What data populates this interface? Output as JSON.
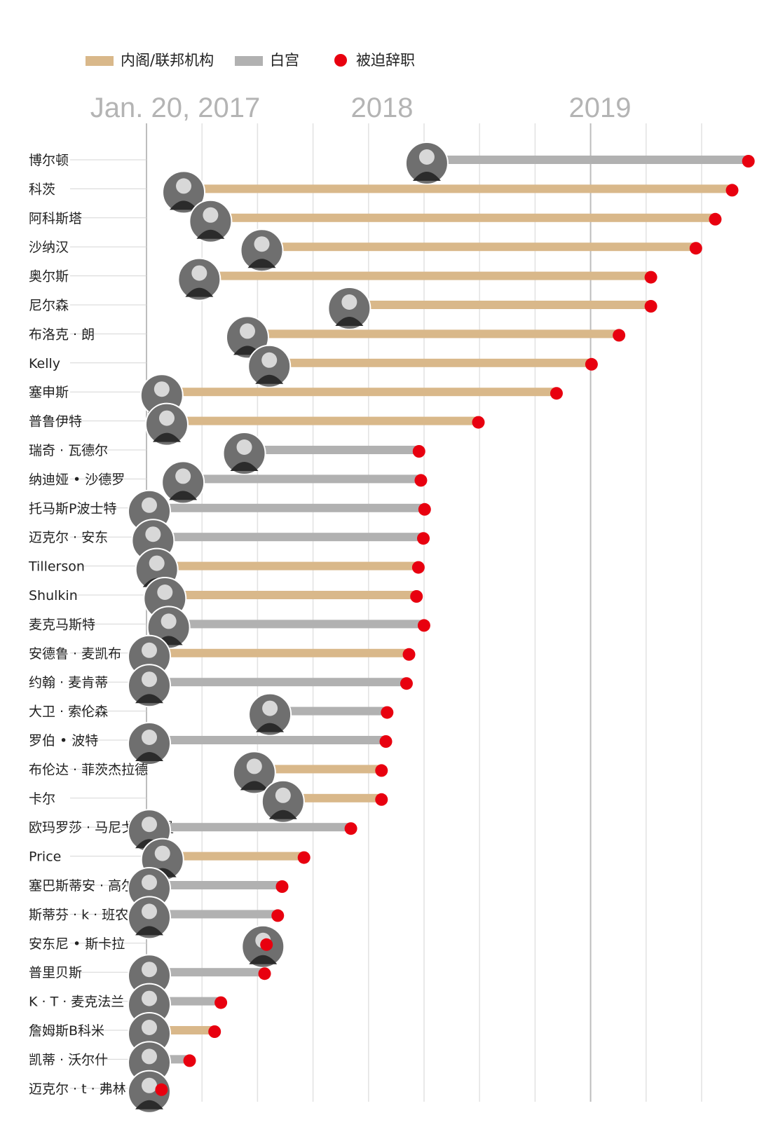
{
  "legend": [
    {
      "label": "内阁/联邦机构",
      "color": "#d9b88a",
      "shape": "bar"
    },
    {
      "label": "白宫",
      "color": "#b1b1b1",
      "shape": "bar"
    },
    {
      "label": "被迫辞职",
      "color": "#e8000f",
      "shape": "dot"
    }
  ],
  "chart_data": {
    "type": "timeline-bar",
    "title": "",
    "x_axis": {
      "type": "date",
      "tick_labels": [
        {
          "label": "Jan. 20, 2017",
          "date": "2017-01-20"
        },
        {
          "label": "2018",
          "date": "2018-01-01"
        },
        {
          "label": "2019",
          "date": "2019-01-01"
        }
      ],
      "range": [
        "2017-01-01",
        "2019-06-01"
      ],
      "grid": true
    },
    "colors": {
      "cabinet": "#d9b88a",
      "white_house": "#b1b1b1",
      "forced": "#e8000f",
      "axis": "#c8c8c8"
    },
    "series_legend": {
      "cabinet": "内阁/联邦机构",
      "white_house": "白宫",
      "forced": "被迫辞职"
    },
    "rows": [
      {
        "name": "博尔顿",
        "category": "white_house",
        "start": "2018-04-09",
        "end": "2019-09-10",
        "forced": true
      },
      {
        "name": "科茨",
        "category": "cabinet",
        "start": "2017-03-16",
        "end": "2019-08-15",
        "forced": true
      },
      {
        "name": "阿科斯塔",
        "category": "cabinet",
        "start": "2017-04-28",
        "end": "2019-07-19",
        "forced": true
      },
      {
        "name": "沙纳汉",
        "category": "cabinet",
        "start": "2017-07-19",
        "end": "2019-06-18",
        "forced": true
      },
      {
        "name": "奥尔斯",
        "category": "cabinet",
        "start": "2017-04-10",
        "end": "2019-04-07",
        "forced": true
      },
      {
        "name": "尼尔森",
        "category": "cabinet",
        "start": "2017-12-06",
        "end": "2019-04-07",
        "forced": true
      },
      {
        "name": "布洛克 · 朗",
        "category": "cabinet",
        "start": "2017-06-26",
        "end": "2019-02-15",
        "forced": true
      },
      {
        "name": "Kelly",
        "category": "cabinet",
        "start": "2017-07-31",
        "end": "2019-01-02",
        "forced": true
      },
      {
        "name": "塞申斯",
        "category": "cabinet",
        "start": "2017-02-09",
        "end": "2018-11-07",
        "forced": true
      },
      {
        "name": "普鲁伊特",
        "category": "cabinet",
        "start": "2017-02-17",
        "end": "2018-07-05",
        "forced": true
      },
      {
        "name": "瑞奇 · 瓦德尔",
        "category": "white_house",
        "start": "2017-06-21",
        "end": "2018-04-01",
        "forced": true
      },
      {
        "name": "纳迪娅 • 沙德罗",
        "category": "white_house",
        "start": "2017-03-15",
        "end": "2018-04-04",
        "forced": true
      },
      {
        "name": "托马斯P波士特",
        "category": "white_house",
        "start": "2017-01-20",
        "end": "2018-04-10",
        "forced": true
      },
      {
        "name": "迈克尔 · 安东",
        "category": "white_house",
        "start": "2017-01-26",
        "end": "2018-04-08",
        "forced": true
      },
      {
        "name": "Tillerson",
        "category": "cabinet",
        "start": "2017-02-01",
        "end": "2018-03-31",
        "forced": true
      },
      {
        "name": "Shulkin",
        "category": "cabinet",
        "start": "2017-02-14",
        "end": "2018-03-28",
        "forced": true
      },
      {
        "name": "麦克马斯特",
        "category": "white_house",
        "start": "2017-02-20",
        "end": "2018-04-09",
        "forced": true
      },
      {
        "name": "安德鲁 · 麦凯布",
        "category": "cabinet",
        "start": "2017-01-20",
        "end": "2018-03-16",
        "forced": true
      },
      {
        "name": "约翰 · 麦肯蒂",
        "category": "white_house",
        "start": "2017-01-20",
        "end": "2018-03-12",
        "forced": true
      },
      {
        "name": "大卫 · 索伦森",
        "category": "white_house",
        "start": "2017-08-01",
        "end": "2018-02-09",
        "forced": true
      },
      {
        "name": "罗伯 • 波特",
        "category": "white_house",
        "start": "2017-01-20",
        "end": "2018-02-07",
        "forced": true
      },
      {
        "name": "布伦达 · 菲茨杰拉德",
        "category": "cabinet",
        "start": "2017-07-07",
        "end": "2018-01-31",
        "forced": true
      },
      {
        "name": "卡尔",
        "category": "cabinet",
        "start": "2017-08-22",
        "end": "2018-01-31",
        "forced": true
      },
      {
        "name": "欧玛罗莎 · 马尼戈 · 纽曼",
        "category": "white_house",
        "start": "2017-01-20",
        "end": "2017-12-13",
        "forced": true
      },
      {
        "name": "Price",
        "category": "cabinet",
        "start": "2017-02-10",
        "end": "2017-09-29",
        "forced": true
      },
      {
        "name": "塞巴斯蒂安 · 高尔卡",
        "category": "white_house",
        "start": "2017-01-20",
        "end": "2017-08-25",
        "forced": true
      },
      {
        "name": "斯蒂芬 · k · 班农",
        "category": "white_house",
        "start": "2017-01-20",
        "end": "2017-08-18",
        "forced": true
      },
      {
        "name": "安东尼 • 斯卡拉",
        "category": "white_house",
        "start": "2017-07-21",
        "end": "2017-07-31",
        "forced": true
      },
      {
        "name": "普里贝斯",
        "category": "white_house",
        "start": "2017-01-20",
        "end": "2017-07-28",
        "forced": true
      },
      {
        "name": "K · T · 麦克法兰",
        "category": "white_house",
        "start": "2017-01-20",
        "end": "2017-05-19",
        "forced": true
      },
      {
        "name": "詹姆斯B科米",
        "category": "cabinet",
        "start": "2017-01-20",
        "end": "2017-05-09",
        "forced": true
      },
      {
        "name": "凯蒂 · 沃尔什",
        "category": "white_house",
        "start": "2017-01-20",
        "end": "2017-03-30",
        "forced": true
      },
      {
        "name": "迈克尔 · t · 弗林",
        "category": "white_house",
        "start": "2017-01-20",
        "end": "2017-02-13",
        "forced": true
      }
    ]
  }
}
